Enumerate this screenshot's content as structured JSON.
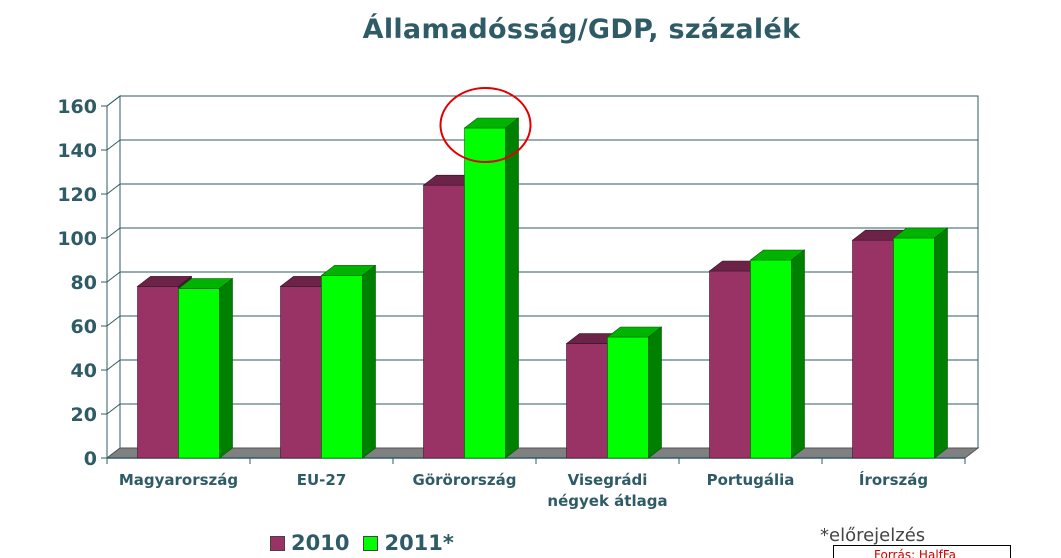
{
  "chart_data": {
    "type": "bar",
    "title": "Államadósság/GDP, százalék",
    "categories": [
      [
        "Magyarország"
      ],
      [
        "EU-27"
      ],
      [
        "Görörország"
      ],
      [
        "Visegrádi",
        "négyek átlaga"
      ],
      [
        "Portugália"
      ],
      [
        "Írország"
      ]
    ],
    "series": [
      {
        "name": "2010",
        "color": "#993366",
        "values": [
          78,
          78,
          124,
          52,
          85,
          99
        ]
      },
      {
        "name": "2011*",
        "color": "#00ff00",
        "values": [
          77,
          83,
          150,
          55,
          90,
          100
        ]
      }
    ],
    "ylim": [
      0,
      160
    ],
    "yticks": [
      0,
      20,
      40,
      60,
      80,
      100,
      120,
      140,
      160
    ],
    "grid": true,
    "legend_position": "bottom-left",
    "highlight": {
      "category_index": 2,
      "series_index": 1,
      "shape": "circle",
      "color": "#e00000"
    }
  },
  "footnote": "*előrejelzés",
  "source_label": "Forrás: HalfFa"
}
